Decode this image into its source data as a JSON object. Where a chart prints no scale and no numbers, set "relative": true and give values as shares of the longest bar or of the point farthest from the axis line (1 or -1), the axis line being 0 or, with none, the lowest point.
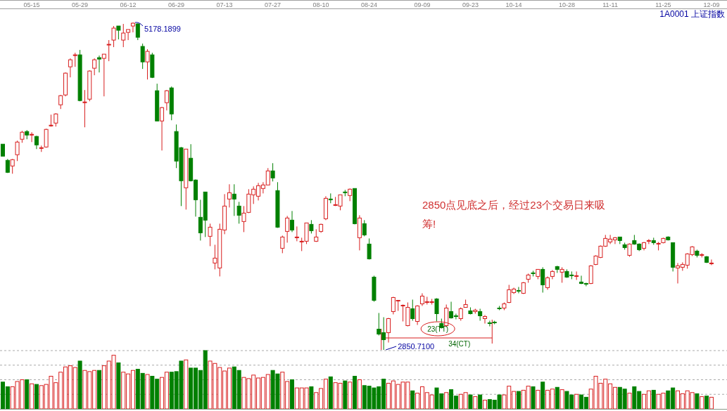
{
  "chart_data": [
    {
      "type": "candlestick",
      "title": "1A0001  上证指数",
      "categories": [
        null,
        null,
        null,
        null,
        null,
        null,
        "05-15",
        null,
        null,
        null,
        null,
        null,
        null,
        null,
        null,
        null,
        "05-29",
        null,
        null,
        null,
        null,
        null,
        null,
        null,
        null,
        null,
        "06-12",
        null,
        null,
        null,
        null,
        null,
        null,
        null,
        null,
        null,
        "06-29",
        null,
        null,
        null,
        null,
        null,
        null,
        null,
        null,
        null,
        "07-13",
        null,
        null,
        null,
        null,
        null,
        null,
        null,
        null,
        null,
        "07-27",
        null,
        null,
        null,
        null,
        null,
        null,
        null,
        null,
        null,
        "08-10",
        null,
        null,
        null,
        null,
        null,
        null,
        null,
        null,
        null,
        "08-24",
        null,
        null,
        null,
        null,
        null,
        null,
        null,
        null,
        null,
        null,
        "09-09",
        null,
        null,
        null,
        null,
        null,
        null,
        null,
        null,
        null,
        "09-23",
        null,
        null,
        null,
        null,
        null,
        null,
        null,
        null,
        "10-14",
        null,
        null,
        null,
        null,
        null,
        null,
        null,
        null,
        null,
        null,
        "10-28",
        null,
        null,
        null,
        null,
        null,
        null,
        null,
        null,
        "11-11",
        null,
        null,
        null,
        null,
        null,
        null,
        null,
        null,
        null,
        null,
        "11-25",
        null,
        null,
        null,
        null,
        null,
        null,
        null,
        null,
        null,
        "12-09"
      ],
      "ohlc": [
        [
          4313,
          4313,
          4228,
          4228
        ],
        [
          4198,
          4208,
          4108,
          4113
        ],
        [
          4158,
          4208,
          4103,
          4203
        ],
        [
          4238,
          4338,
          4193,
          4328
        ],
        [
          4348,
          4408,
          4323,
          4398
        ],
        [
          4403,
          4413,
          4348,
          4378
        ],
        [
          4378,
          4398,
          4328,
          4383
        ],
        [
          4368,
          4373,
          4278,
          4308
        ],
        [
          4283,
          4303,
          4258,
          4288
        ],
        [
          4293,
          4423,
          4288,
          4418
        ],
        [
          4443,
          4523,
          4438,
          4448
        ],
        [
          4463,
          4533,
          4438,
          4528
        ],
        [
          4593,
          4663,
          4563,
          4658
        ],
        [
          4663,
          4823,
          4653,
          4818
        ],
        [
          4863,
          4923,
          4788,
          4913
        ],
        [
          4943,
          4963,
          4863,
          4948
        ],
        [
          4948,
          4983,
          4618,
          4623
        ],
        [
          4608,
          4698,
          4433,
          4613
        ],
        [
          4633,
          4838,
          4618,
          4833
        ],
        [
          4853,
          4923,
          4803,
          4913
        ],
        [
          4928,
          4943,
          4823,
          4918
        ],
        [
          4923,
          4953,
          4653,
          4953
        ],
        [
          5018,
          5053,
          4903,
          5023
        ],
        [
          5053,
          5153,
          5003,
          5138
        ],
        [
          5153,
          5153,
          5058,
          5123
        ],
        [
          5053,
          5168,
          5003,
          5103
        ],
        [
          5108,
          5128,
          5053,
          5128
        ],
        [
          5153,
          5178.1899,
          5108,
          5173
        ],
        [
          5168,
          5172,
          5053,
          5073
        ],
        [
          5008,
          5028,
          4848,
          4898
        ],
        [
          4898,
          4988,
          4773,
          4973
        ],
        [
          4948,
          4963,
          4783,
          4788
        ],
        [
          4693,
          4743,
          4478,
          4478
        ],
        [
          4478,
          4578,
          4268,
          4573
        ],
        [
          4608,
          4698,
          4553,
          4693
        ],
        [
          4713,
          4723,
          4483,
          4528
        ],
        [
          4403,
          4453,
          4143,
          4193
        ],
        [
          4288,
          4293,
          3873,
          4053
        ],
        [
          4003,
          4278,
          3848,
          4278
        ],
        [
          4213,
          4313,
          4048,
          4053
        ],
        [
          4058,
          4063,
          3798,
          3918
        ],
        [
          3793,
          3918,
          3628,
          3683
        ],
        [
          3973,
          3973,
          3653,
          3773
        ],
        [
          3658,
          3748,
          3588,
          3723
        ],
        [
          3468,
          3598,
          3423,
          3503
        ],
        [
          3433,
          3748,
          3373,
          3708
        ],
        [
          3703,
          3958,
          3673,
          3873
        ],
        [
          3923,
          4028,
          3863,
          3968
        ],
        [
          3958,
          4028,
          3803,
          3923
        ],
        [
          3873,
          3903,
          3748,
          3808
        ],
        [
          3763,
          3873,
          3688,
          3823
        ],
        [
          3828,
          3993,
          3823,
          3958
        ],
        [
          3953,
          4013,
          3888,
          3993
        ],
        [
          3943,
          4038,
          3913,
          4018
        ],
        [
          3998,
          4043,
          3963,
          4023
        ],
        [
          4023,
          4143,
          4023,
          4123
        ],
        [
          4123,
          4178,
          4048,
          4073
        ],
        [
          3983,
          4043,
          3718,
          3723
        ],
        [
          3573,
          3663,
          3538,
          3653
        ],
        [
          3693,
          3803,
          3613,
          3788
        ],
        [
          3773,
          3838,
          3688,
          3703
        ],
        [
          3648,
          3728,
          3623,
          3653
        ],
        [
          3618,
          3648,
          3553,
          3623
        ],
        [
          3623,
          3753,
          3603,
          3753
        ],
        [
          3743,
          3773,
          3678,
          3698
        ],
        [
          3623,
          3708,
          3618,
          3653
        ],
        [
          3693,
          3748,
          3683,
          3743
        ],
        [
          3783,
          3943,
          3773,
          3928
        ],
        [
          3923,
          3963,
          3893,
          3918
        ],
        [
          3878,
          3938,
          3873,
          3883
        ],
        [
          3873,
          3953,
          3843,
          3953
        ],
        [
          3973,
          3988,
          3943,
          3968
        ],
        [
          3948,
          3998,
          3908,
          3993
        ],
        [
          3998,
          3998,
          3743,
          3748
        ],
        [
          3648,
          3808,
          3558,
          3788
        ],
        [
          3748,
          3773,
          3658,
          3668
        ],
        [
          3603,
          3643,
          3493,
          3498
        ],
        [
          3368,
          3378,
          3193,
          3203
        ],
        [
          2998,
          3113,
          2953,
          2963
        ],
        [
          2973,
          3083,
          2850.71,
          2923
        ],
        [
          2973,
          3078,
          2903,
          3073
        ],
        [
          3123,
          3228,
          3103,
          3223
        ],
        [
          3198,
          3203,
          3128,
          3203
        ],
        [
          3163,
          3173,
          3053,
          3168
        ],
        [
          3023,
          3188,
          3018,
          3153
        ],
        [
          3143,
          3208,
          3058,
          3073
        ],
        [
          3053,
          3168,
          3028,
          3163
        ],
        [
          3178,
          3253,
          3163,
          3233
        ],
        [
          3188,
          3228,
          3173,
          3193
        ],
        [
          3188,
          3213,
          3173,
          3193
        ],
        [
          3213,
          3218,
          3053,
          3108
        ],
        [
          3038,
          3073,
          3003,
          3008
        ],
        [
          3023,
          3173,
          3013,
          3148
        ],
        [
          3123,
          3193,
          3073,
          3078
        ],
        [
          3093,
          3108,
          3068,
          3088
        ],
        [
          3073,
          3153,
          3058,
          3143
        ],
        [
          3153,
          3208,
          3153,
          3173
        ],
        [
          3128,
          3153,
          3103,
          3108
        ],
        [
          3123,
          3143,
          3108,
          3133
        ],
        [
          3123,
          3143,
          3058,
          3093
        ],
        [
          3073,
          3098,
          3038,
          3088
        ],
        [
          3043,
          3058,
          3018,
          3038
        ],
        [
          3048,
          3058,
          3033,
          3043
        ],
        [
          3148,
          3163,
          3133,
          3143
        ],
        [
          3148,
          3188,
          3133,
          3178
        ],
        [
          3188,
          3313,
          3183,
          3278
        ],
        [
          3258,
          3293,
          3248,
          3283
        ],
        [
          3273,
          3298,
          3253,
          3268
        ],
        [
          3253,
          3333,
          3248,
          3328
        ],
        [
          3353,
          3393,
          3328,
          3383
        ],
        [
          3398,
          3413,
          3373,
          3393
        ],
        [
          3373,
          3423,
          3353,
          3423
        ],
        [
          3423,
          3438,
          3258,
          3313
        ],
        [
          3293,
          3373,
          3278,
          3363
        ],
        [
          3373,
          3418,
          3353,
          3408
        ],
        [
          3443,
          3448,
          3398,
          3423
        ],
        [
          3403,
          3438,
          3328,
          3423
        ],
        [
          3408,
          3423,
          3363,
          3368
        ],
        [
          3383,
          3408,
          3353,
          3378
        ],
        [
          3373,
          3408,
          3348,
          3378
        ],
        [
          3333,
          3378,
          3318,
          3323
        ],
        [
          3323,
          3328,
          3303,
          3318
        ],
        [
          3323,
          3453,
          3318,
          3448
        ],
        [
          3458,
          3523,
          3453,
          3518
        ],
        [
          3508,
          3593,
          3503,
          3588
        ],
        [
          3588,
          3668,
          3583,
          3643
        ],
        [
          3618,
          3668,
          3603,
          3638
        ],
        [
          3633,
          3653,
          3603,
          3648
        ],
        [
          3653,
          3653,
          3603,
          3628
        ],
        [
          3598,
          3613,
          3563,
          3578
        ],
        [
          3523,
          3608,
          3513,
          3603
        ],
        [
          3628,
          3668,
          3598,
          3603
        ],
        [
          3603,
          3608,
          3553,
          3563
        ],
        [
          3573,
          3618,
          3558,
          3613
        ],
        [
          3623,
          3638,
          3603,
          3628
        ],
        [
          3628,
          3648,
          3598,
          3613
        ],
        [
          3603,
          3618,
          3558,
          3608
        ],
        [
          3613,
          3648,
          3608,
          3643
        ],
        [
          3653,
          3658,
          3628,
          3633
        ],
        [
          3613,
          3613,
          3408,
          3438
        ],
        [
          3433,
          3468,
          3323,
          3448
        ],
        [
          3438,
          3473,
          3413,
          3458
        ],
        [
          3453,
          3538,
          3428,
          3533
        ],
        [
          3528,
          3588,
          3518,
          3583
        ],
        [
          3553,
          3563,
          3508,
          3523
        ],
        [
          3523,
          3538,
          3508,
          3528
        ],
        [
          3513,
          3518,
          3468,
          3473
        ],
        [
          3463,
          3493,
          3453,
          3468
        ]
      ],
      "colors": [
        "#008000",
        "#008000",
        "#d81e1e",
        "#d81e1e",
        "#d81e1e",
        "#008000",
        "#d81e1e",
        "#008000",
        "#d81e1e",
        "#d81e1e",
        "#d81e1e",
        "#d81e1e",
        "#d81e1e",
        "#d81e1e",
        "#d81e1e",
        "#d81e1e",
        "#008000",
        "#d81e1e",
        "#d81e1e",
        "#d81e1e",
        "#008000",
        "#d81e1e",
        "#d81e1e",
        "#d81e1e",
        "#008000",
        "#d81e1e",
        "#d81e1e",
        "#d81e1e",
        "#008000",
        "#008000",
        "#d81e1e",
        "#008000",
        "#008000",
        "#d81e1e",
        "#d81e1e",
        "#008000",
        "#008000",
        "#008000",
        "#d81e1e",
        "#008000",
        "#008000",
        "#008000",
        "#008000",
        "#d81e1e",
        "#d81e1e",
        "#d81e1e",
        "#d81e1e",
        "#d81e1e",
        "#008000",
        "#008000",
        "#d81e1e",
        "#d81e1e",
        "#d81e1e",
        "#d81e1e",
        "#d81e1e",
        "#d81e1e",
        "#008000",
        "#008000",
        "#d81e1e",
        "#d81e1e",
        "#008000",
        "#d81e1e",
        "#d81e1e",
        "#d81e1e",
        "#008000",
        "#d81e1e",
        "#d81e1e",
        "#d81e1e",
        "#008000",
        "#d81e1e",
        "#d81e1e",
        "#008000",
        "#d81e1e",
        "#008000",
        "#d81e1e",
        "#008000",
        "#008000",
        "#008000",
        "#008000",
        "#008000",
        "#d81e1e",
        "#d81e1e",
        "#d81e1e",
        "#d81e1e",
        "#d81e1e",
        "#008000",
        "#d81e1e",
        "#d81e1e",
        "#d81e1e",
        "#d81e1e",
        "#008000",
        "#008000",
        "#d81e1e",
        "#008000",
        "#008000",
        "#d81e1e",
        "#d81e1e",
        "#008000",
        "#d81e1e",
        "#008000",
        "#d81e1e",
        "#008000",
        "#008000",
        "#008000",
        "#d81e1e",
        "#d81e1e",
        "#d81e1e",
        "#008000",
        "#d81e1e",
        "#d81e1e",
        "#008000",
        "#d81e1e",
        "#008000",
        "#d81e1e",
        "#d81e1e",
        "#008000",
        "#d81e1e",
        "#008000",
        "#008000",
        "#d81e1e",
        "#008000",
        "#008000",
        "#d81e1e",
        "#d81e1e",
        "#d81e1e",
        "#d81e1e",
        "#d81e1e",
        "#d81e1e",
        "#008000",
        "#008000",
        "#d81e1e",
        "#008000",
        "#008000",
        "#d81e1e",
        "#d81e1e",
        "#008000",
        "#d81e1e",
        "#d81e1e",
        "#008000",
        "#008000",
        "#d81e1e",
        "#d81e1e",
        "#d81e1e",
        "#d81e1e",
        "#008000",
        "#d81e1e",
        "#008000",
        "#d81e1e"
      ],
      "annotations": [
        "5178.1899",
        "2850.7100",
        "2850点见底之后，经过23个交易日来吸筹!",
        "23(TT)",
        "34(CT)"
      ]
    },
    {
      "type": "bar",
      "relative": true,
      "grid": true,
      "categories": [
        null,
        null,
        null,
        null,
        null,
        null,
        null,
        null,
        null,
        null,
        null,
        null,
        null,
        null,
        null,
        null,
        null,
        null,
        null,
        null,
        null,
        null,
        null,
        null,
        null,
        null,
        null,
        null,
        null,
        null,
        null,
        null,
        null,
        null,
        null,
        null,
        null,
        null,
        null,
        null,
        null,
        null,
        null,
        null,
        null,
        null,
        null,
        null,
        null,
        null,
        null,
        null,
        null,
        null,
        null,
        null,
        null,
        null,
        null,
        null,
        null,
        null,
        null,
        null,
        null,
        null,
        null,
        null,
        null,
        null,
        null,
        null,
        null,
        null,
        null,
        null,
        null,
        null,
        null,
        null,
        null,
        null,
        null,
        null,
        null,
        null,
        null,
        null,
        null,
        null,
        null,
        null,
        null,
        null,
        null,
        null,
        null,
        null,
        null,
        null,
        null,
        null,
        null,
        null,
        null,
        null,
        null,
        null,
        null,
        null,
        null,
        null,
        null,
        null,
        null,
        null,
        null,
        null,
        null,
        null,
        null,
        null,
        null,
        null,
        null,
        null,
        null,
        null,
        null,
        null,
        null,
        null,
        null,
        null,
        null,
        null,
        null,
        null,
        null,
        null,
        null,
        null,
        null,
        null,
        null,
        null,
        null,
        null
      ],
      "values": [
        0.46,
        0.38,
        0.38,
        0.47,
        0.5,
        0.5,
        0.43,
        0.42,
        0.4,
        0.42,
        0.56,
        0.45,
        0.63,
        0.72,
        0.74,
        0.71,
        0.82,
        0.66,
        0.64,
        0.66,
        0.66,
        0.74,
        0.82,
        0.92,
        0.79,
        0.63,
        0.6,
        0.66,
        0.68,
        0.61,
        0.59,
        0.56,
        0.51,
        0.54,
        0.63,
        0.63,
        0.64,
        0.82,
        0.84,
        0.7,
        0.7,
        0.66,
        1,
        0.82,
        0.78,
        0.71,
        0.65,
        0.7,
        0.72,
        0.66,
        0.54,
        0.52,
        0.58,
        0.53,
        0.54,
        0.59,
        0.66,
        0.6,
        0.63,
        0.47,
        0.5,
        0.36,
        0.36,
        0.36,
        0.38,
        0.28,
        0.35,
        0.51,
        0.55,
        0.45,
        0.44,
        0.48,
        0.46,
        0.56,
        0.5,
        0.4,
        0.39,
        0.36,
        0.38,
        0.51,
        0.44,
        0.48,
        0.42,
        0.46,
        0.46,
        0.31,
        0.27,
        0.38,
        0.28,
        0.24,
        0.36,
        0.26,
        0.28,
        0.33,
        0.22,
        0.25,
        0.28,
        0.24,
        0.21,
        0.24,
        0.15,
        0.16,
        0.15,
        0.24,
        0.24,
        0.39,
        0.3,
        0.3,
        0.32,
        0.39,
        0.38,
        0.32,
        0.46,
        0.32,
        0.34,
        0.37,
        0.33,
        0.3,
        0.24,
        0.25,
        0.24,
        0.2,
        0.34,
        0.56,
        0.44,
        0.51,
        0.43,
        0.37,
        0.37,
        0.34,
        0.27,
        0.38,
        0.3,
        0.25,
        0.31,
        0.32,
        0.25,
        0.27,
        0.31,
        0.36,
        0.31,
        0.26,
        0.31,
        0.28,
        0.26,
        0.21,
        0.22,
        0.2
      ],
      "colors": [
        "#008000",
        "#008000",
        "#d81e1e",
        "#d81e1e",
        "#d81e1e",
        "#008000",
        "#d81e1e",
        "#008000",
        "#d81e1e",
        "#d81e1e",
        "#d81e1e",
        "#d81e1e",
        "#d81e1e",
        "#d81e1e",
        "#d81e1e",
        "#d81e1e",
        "#008000",
        "#d81e1e",
        "#d81e1e",
        "#d81e1e",
        "#008000",
        "#d81e1e",
        "#d81e1e",
        "#d81e1e",
        "#008000",
        "#d81e1e",
        "#d81e1e",
        "#d81e1e",
        "#008000",
        "#008000",
        "#d81e1e",
        "#008000",
        "#008000",
        "#d81e1e",
        "#d81e1e",
        "#008000",
        "#008000",
        "#008000",
        "#d81e1e",
        "#008000",
        "#008000",
        "#008000",
        "#008000",
        "#d81e1e",
        "#d81e1e",
        "#d81e1e",
        "#d81e1e",
        "#d81e1e",
        "#008000",
        "#008000",
        "#d81e1e",
        "#d81e1e",
        "#d81e1e",
        "#d81e1e",
        "#d81e1e",
        "#d81e1e",
        "#008000",
        "#008000",
        "#d81e1e",
        "#d81e1e",
        "#008000",
        "#d81e1e",
        "#d81e1e",
        "#d81e1e",
        "#008000",
        "#d81e1e",
        "#d81e1e",
        "#d81e1e",
        "#008000",
        "#d81e1e",
        "#d81e1e",
        "#008000",
        "#d81e1e",
        "#008000",
        "#d81e1e",
        "#008000",
        "#008000",
        "#008000",
        "#008000",
        "#008000",
        "#d81e1e",
        "#d81e1e",
        "#d81e1e",
        "#d81e1e",
        "#d81e1e",
        "#008000",
        "#d81e1e",
        "#d81e1e",
        "#d81e1e",
        "#d81e1e",
        "#008000",
        "#008000",
        "#d81e1e",
        "#008000",
        "#008000",
        "#d81e1e",
        "#d81e1e",
        "#008000",
        "#d81e1e",
        "#008000",
        "#d81e1e",
        "#008000",
        "#008000",
        "#008000",
        "#d81e1e",
        "#d81e1e",
        "#d81e1e",
        "#008000",
        "#d81e1e",
        "#d81e1e",
        "#008000",
        "#d81e1e",
        "#008000",
        "#d81e1e",
        "#d81e1e",
        "#008000",
        "#d81e1e",
        "#008000",
        "#008000",
        "#d81e1e",
        "#008000",
        "#008000",
        "#d81e1e",
        "#d81e1e",
        "#d81e1e",
        "#d81e1e",
        "#d81e1e",
        "#d81e1e",
        "#008000",
        "#008000",
        "#d81e1e",
        "#008000",
        "#008000",
        "#d81e1e",
        "#d81e1e",
        "#008000",
        "#d81e1e",
        "#d81e1e",
        "#008000",
        "#008000",
        "#d81e1e",
        "#d81e1e",
        "#d81e1e",
        "#d81e1e",
        "#008000",
        "#d81e1e",
        "#008000",
        "#d81e1e"
      ]
    }
  ]
}
